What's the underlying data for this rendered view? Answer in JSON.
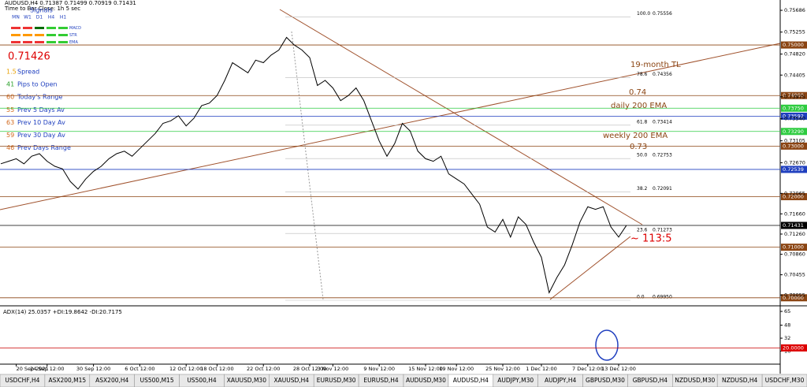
{
  "header": {
    "title": "AUDUSD,H4  0.71387 0.71499 0.70919 0.71431",
    "timer": "Time to Bar Close: 1h 5 sec",
    "signals": "Signals",
    "timeframes": [
      "MN",
      "W1",
      "D1",
      "H4",
      "H1"
    ],
    "indicators": [
      "MACD",
      "STR",
      "EMA"
    ]
  },
  "info": {
    "price": "0.71426",
    "rows": [
      {
        "num": "1.5",
        "label": "Spread",
        "color": "#e8a000"
      },
      {
        "num": "41",
        "label": "Pips to Open",
        "color": "#2ca02c"
      },
      {
        "num": "60",
        "label": "Today's Range",
        "color": "#d2691e"
      },
      {
        "num": "55",
        "label": "Prev 5 Days Av",
        "color": "#d2691e"
      },
      {
        "num": "63",
        "label": "Prev 10 Day Av",
        "color": "#d2691e"
      },
      {
        "num": "59",
        "label": "Prev 30 Day Av",
        "color": "#d2691e"
      },
      {
        "num": "46",
        "label": "Prev Days Range",
        "color": "#d2691e"
      }
    ]
  },
  "annotations": {
    "tl": "19-month TL",
    "a074": "0.74",
    "daily": "daily 200 EMA",
    "weekly": "weekly 200 EMA",
    "a073": "0.73",
    "ratio": "~ 113:5"
  },
  "chart_data": {
    "type": "line",
    "color": "#000000",
    "categories": [
      null,
      null,
      "20 Sep 2021",
      null,
      null,
      null,
      "24 Sep 12:00",
      null,
      null,
      null,
      null,
      null,
      "30 Sep 12:00",
      null,
      null,
      null,
      null,
      null,
      "6 Oct 12:00",
      null,
      null,
      null,
      null,
      null,
      "12 Oct 12:00",
      null,
      null,
      null,
      "18 Oct 12:00",
      null,
      null,
      null,
      null,
      null,
      "22 Oct 12:00",
      null,
      null,
      null,
      null,
      null,
      "28 Oct 12:00",
      null,
      null,
      "3 Nov 12:00",
      null,
      null,
      null,
      null,
      null,
      "9 Nov 12:00",
      null,
      null,
      null,
      null,
      null,
      "15 Nov 12:00",
      null,
      null,
      null,
      "19 Nov 12:00",
      null,
      null,
      null,
      null,
      null,
      "25 Nov 12:00",
      null,
      null,
      null,
      null,
      "1 Dec 12:00",
      null,
      null,
      null,
      null,
      null,
      "7 Dec 12:00",
      null,
      null,
      null,
      "13 Dec 12:00",
      null
    ],
    "values": [
      0.7265,
      0.727,
      0.7275,
      0.7265,
      0.728,
      0.7285,
      0.727,
      0.726,
      0.7255,
      0.723,
      0.7215,
      0.7235,
      0.725,
      0.726,
      0.7275,
      0.7285,
      0.729,
      0.728,
      0.7295,
      0.731,
      0.7325,
      0.7345,
      0.735,
      0.736,
      0.734,
      0.7355,
      0.738,
      0.7385,
      0.74,
      0.743,
      0.7465,
      0.7455,
      0.7445,
      0.747,
      0.7465,
      0.748,
      0.749,
      0.7515,
      0.75,
      0.749,
      0.7475,
      0.742,
      0.743,
      0.7415,
      0.739,
      0.74,
      0.7415,
      0.739,
      0.735,
      0.731,
      0.728,
      0.7305,
      0.7345,
      0.733,
      0.729,
      0.7275,
      0.727,
      0.728,
      0.7245,
      0.7235,
      0.7225,
      0.7205,
      0.7185,
      0.714,
      0.713,
      0.7155,
      0.712,
      0.716,
      0.7145,
      0.711,
      0.708,
      0.701,
      0.704,
      0.7065,
      0.7105,
      0.715,
      0.718,
      0.7175,
      0.718,
      0.714,
      0.712,
      0.7143
    ],
    "ylim": [
      0.6995,
      0.7589
    ],
    "yticks": [
      0.75686,
      0.75255,
      {
        "value": 0.7482,
        "label": "0.74820"
      },
      0.74405,
      0.73975,
      {
        "value": 0.7354,
        "label": "0.73540"
      },
      0.73105,
      {
        "value": 0.7267,
        "label": "0.72670"
      },
      0.72065,
      {
        "value": 0.7166,
        "label": "0.71660"
      },
      {
        "value": 0.7126,
        "label": "0.71260"
      },
      {
        "value": 0.7086,
        "label": "0.70860"
      },
      0.70455,
      0.70055
    ],
    "levels": [
      {
        "value": 0.75,
        "label": "0.75000",
        "color": "#8b4513"
      },
      {
        "value": 0.74,
        "label": "0.74000",
        "color": "#8b4513"
      },
      {
        "value": 0.7375,
        "label": "0.73750",
        "color": "#2ecc40"
      },
      {
        "value": 0.73592,
        "label": "0.73592",
        "color": "#1f3fbf"
      },
      {
        "value": 0.7329,
        "label": "0.73290",
        "color": "#2ecc40"
      },
      {
        "value": 0.73,
        "label": "0.73000",
        "color": "#8b4513"
      },
      {
        "value": 0.72539,
        "label": "0.72539",
        "color": "#1f3fbf"
      },
      {
        "value": 0.72,
        "label": "0.72000",
        "color": "#8b4513"
      },
      {
        "value": 0.71431,
        "label": "0.71431",
        "color": "#000000"
      },
      {
        "value": 0.71,
        "label": "0.71000",
        "color": "#8b4513"
      },
      {
        "value": 0.7,
        "label": "0.70000",
        "color": "#8b4513"
      }
    ],
    "fib": [
      {
        "level": "100.0",
        "value": 0.75556,
        "label": "0.75556"
      },
      {
        "level": "78.6",
        "value": 0.74356,
        "label": "0.74356"
      },
      {
        "level": "61.8",
        "value": 0.73414,
        "label": "0.73414"
      },
      {
        "level": "50.0",
        "value": 0.72753,
        "label": "0.72753"
      },
      {
        "level": "38.2",
        "value": 0.72091,
        "label": "0.72091"
      },
      {
        "level": "23.6",
        "value": 0.71273,
        "label": "0.71273"
      },
      {
        "level": "0.0",
        "value": 0.6995,
        "label": "0.69950"
      }
    ]
  },
  "adx": {
    "title": "ADX(14) 25.0357 +DI:19.8642 -DI:20.7175",
    "ylim": [
      0,
      68
    ],
    "yticks": [
      65,
      48,
      32,
      16
    ],
    "level": {
      "value": 20,
      "label": "20.0000"
    }
  },
  "tabs": [
    "USDCHF,H4",
    "ASX200,M15",
    "ASX200,H4",
    "US500,M15",
    "US500,H4",
    "XAUUSD,M30",
    "XAUUSD,H4",
    "EURUSD,M30",
    "EURUSD,H4",
    "AUDUSD,M30",
    "AUDUSD,H4",
    "AUDJPY,M30",
    "AUDJPY,H4",
    "GBPUSD,M30",
    "GBPUSD,H4",
    "NZDUSD,M30",
    "NZDUSD,H4",
    "USDCHF,M30"
  ]
}
